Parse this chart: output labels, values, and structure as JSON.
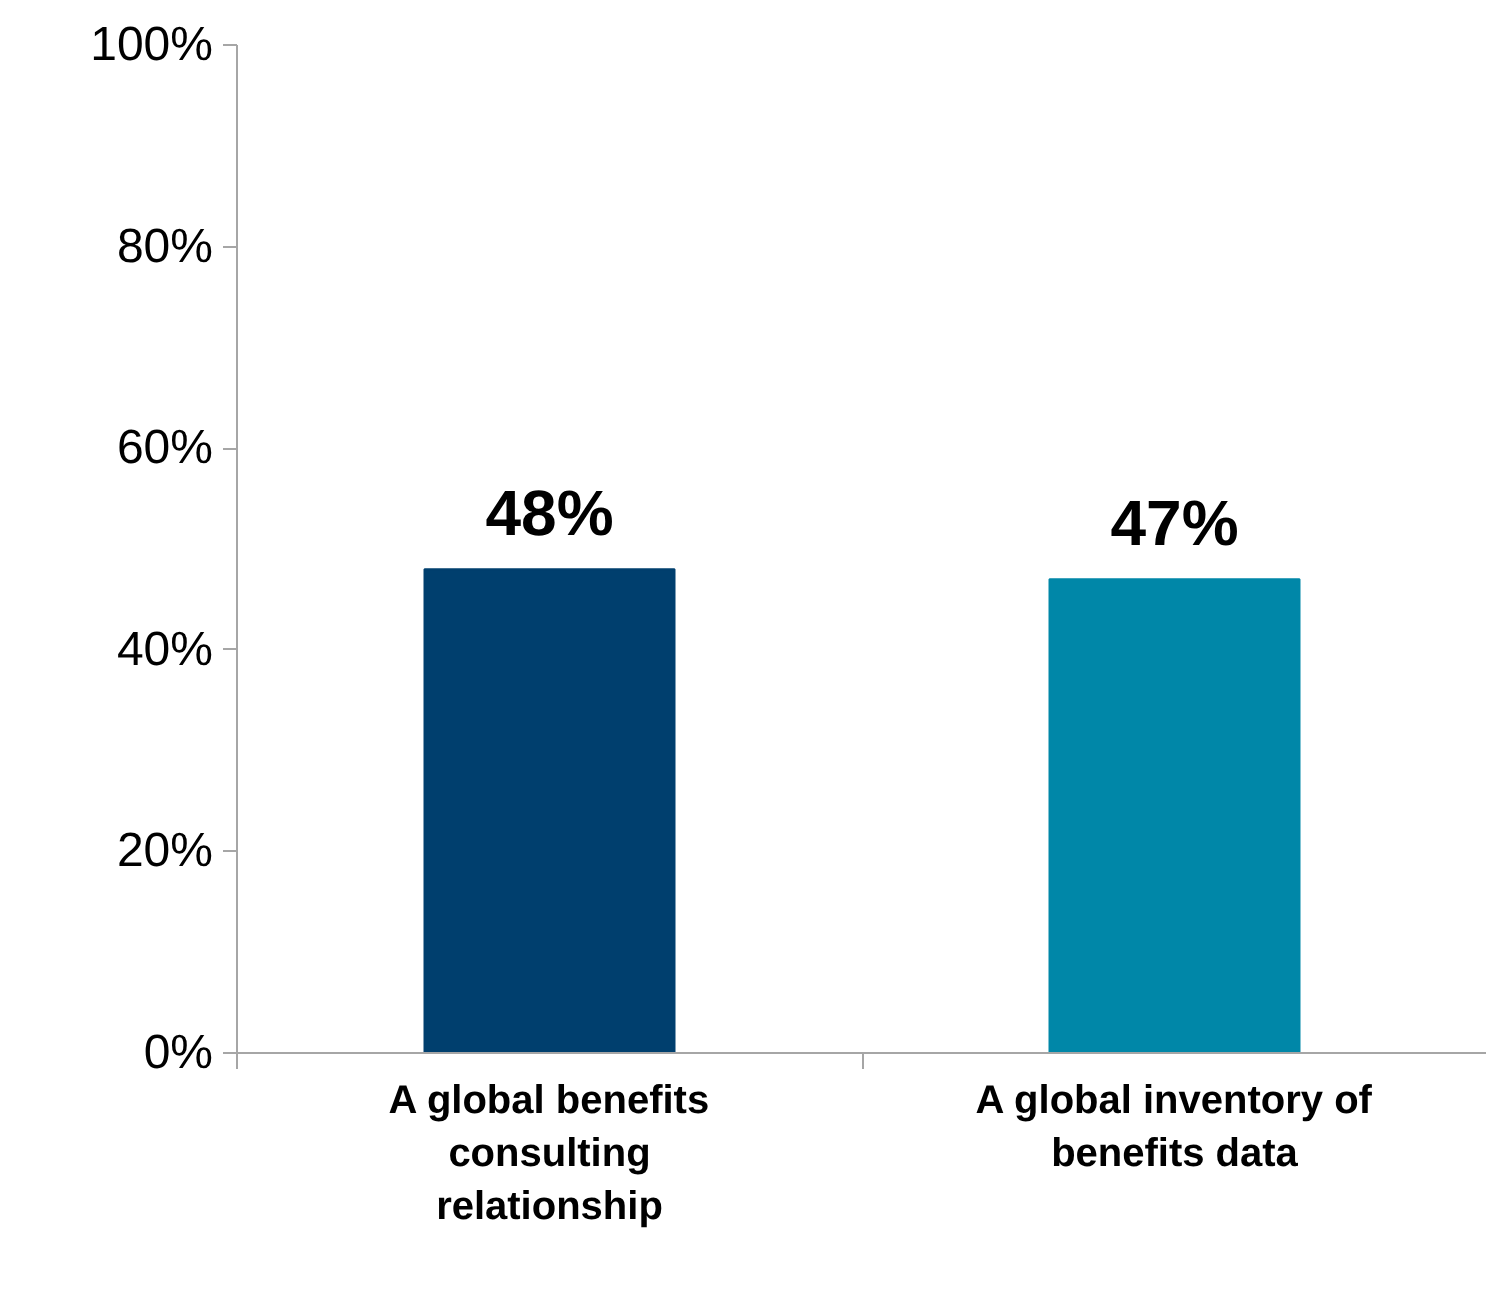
{
  "chart_data": {
    "type": "bar",
    "categories": [
      "A global benefits consulting relationship",
      "A global inventory of benefits data"
    ],
    "values": [
      48,
      47
    ],
    "colors": [
      "#003f6e",
      "#0087a8"
    ],
    "ylim": [
      0,
      100
    ],
    "yticks": [
      {
        "value": 0,
        "label": "0%"
      },
      {
        "value": 20,
        "label": "20%"
      },
      {
        "value": 40,
        "label": "40%"
      },
      {
        "value": 60,
        "label": "60%"
      },
      {
        "value": 80,
        "label": "80%"
      },
      {
        "value": 100,
        "label": "100%"
      }
    ],
    "value_labels": [
      "48%",
      "47%"
    ],
    "grid": false
  }
}
